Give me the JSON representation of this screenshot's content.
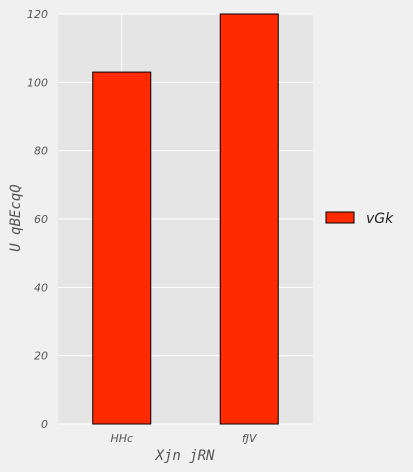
{
  "chart_data": {
    "type": "bar",
    "categories": [
      "HHc",
      "fJV"
    ],
    "series": [
      {
        "name": "vGk",
        "values": [
          103,
          120
        ],
        "color": "#ff2a00"
      }
    ],
    "xlabel": "Xjn jRN",
    "ylabel": "U  qBEcqQ",
    "ylim": [
      0,
      120
    ],
    "yticks": [
      0,
      20,
      40,
      60,
      80,
      100,
      120
    ],
    "grid": true,
    "legend_position": "right",
    "plot_background": "#e5e5e5",
    "figure_background": "#f0f0f0"
  }
}
